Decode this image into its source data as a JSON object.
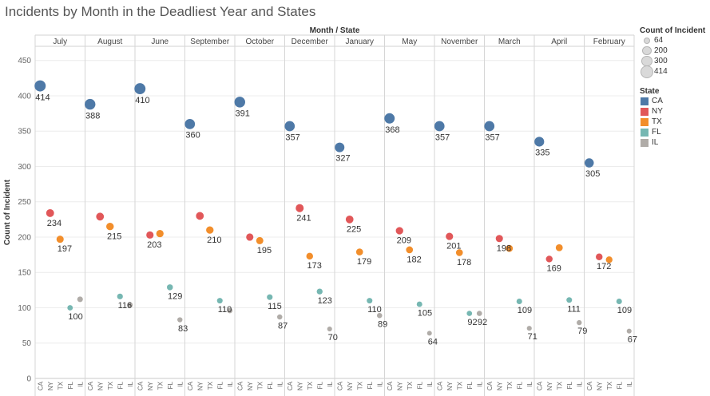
{
  "title": "Incidents by Month in the Deadliest Year and States",
  "chart_data": {
    "type": "scatter",
    "title": "Incidents by Month in the Deadliest Year and States",
    "column_header": "Month / State",
    "ylabel": "Count of Incident",
    "ylim": [
      0,
      470
    ],
    "y_ticks": [
      "0",
      "50",
      "100",
      "150",
      "200",
      "250",
      "300",
      "350",
      "400",
      "450"
    ],
    "grid": true,
    "states": [
      "CA",
      "NY",
      "TX",
      "FL",
      "IL"
    ],
    "series": [
      {
        "month": "July",
        "values": [
          414,
          234,
          197,
          100,
          112
        ],
        "labels": [
          "414",
          "234",
          "197",
          "100",
          ""
        ]
      },
      {
        "month": "August",
        "values": [
          388,
          229,
          215,
          116,
          104
        ],
        "labels": [
          "388",
          "",
          "215",
          "116",
          ""
        ]
      },
      {
        "month": "June",
        "values": [
          410,
          203,
          205,
          129,
          83
        ],
        "labels": [
          "410",
          "203",
          "",
          "129",
          "83"
        ]
      },
      {
        "month": "September",
        "values": [
          360,
          230,
          210,
          110,
          96
        ],
        "labels": [
          "360",
          "",
          "210",
          "110",
          ""
        ]
      },
      {
        "month": "October",
        "values": [
          391,
          200,
          195,
          115,
          87
        ],
        "labels": [
          "391",
          "",
          "195",
          "115",
          "87"
        ]
      },
      {
        "month": "December",
        "values": [
          357,
          241,
          173,
          123,
          70
        ],
        "labels": [
          "357",
          "241",
          "173",
          "123",
          "70"
        ]
      },
      {
        "month": "January",
        "values": [
          327,
          225,
          179,
          110,
          89
        ],
        "labels": [
          "327",
          "225",
          "179",
          "110",
          "89"
        ]
      },
      {
        "month": "May",
        "values": [
          368,
          209,
          182,
          105,
          64
        ],
        "labels": [
          "368",
          "209",
          "182",
          "105",
          "64"
        ]
      },
      {
        "month": "November",
        "values": [
          357,
          201,
          178,
          92,
          92
        ],
        "labels": [
          "357",
          "201",
          "178",
          "92",
          "92"
        ]
      },
      {
        "month": "March",
        "values": [
          357,
          198,
          184,
          109,
          71
        ],
        "labels": [
          "357",
          "198",
          "",
          "109",
          "71"
        ]
      },
      {
        "month": "April",
        "values": [
          335,
          169,
          185,
          111,
          79
        ],
        "labels": [
          "335",
          "169",
          "",
          "111",
          "79"
        ]
      },
      {
        "month": "February",
        "values": [
          305,
          172,
          168,
          109,
          67
        ],
        "labels": [
          "305",
          "172",
          "",
          "109",
          "67"
        ]
      }
    ],
    "legend": {
      "size_title": "Count of Incident",
      "size_values": [
        "64",
        "200",
        "300",
        "414"
      ],
      "color_title": "State",
      "color_entries": [
        {
          "name": "CA",
          "color": "#4e79a7"
        },
        {
          "name": "NY",
          "color": "#e15759"
        },
        {
          "name": "TX",
          "color": "#f28e2b"
        },
        {
          "name": "FL",
          "color": "#76b7b2"
        },
        {
          "name": "IL",
          "color": "#b0aca8"
        }
      ],
      "placement": "right"
    }
  }
}
